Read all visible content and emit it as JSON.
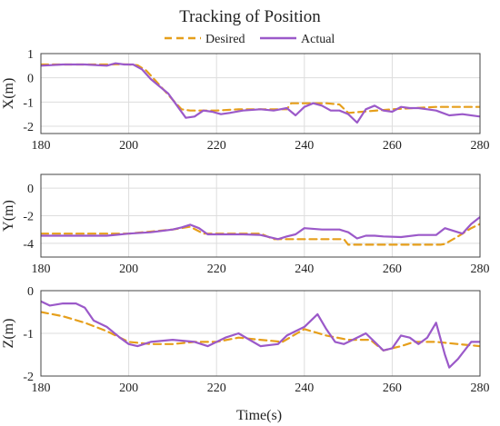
{
  "chart_data": {
    "type": "line",
    "title": "Tracking of Position",
    "xlabel": "Time(s)",
    "legend": {
      "placement": "top-center",
      "entries": [
        {
          "name": "Desired",
          "color": "#E69F1B",
          "style": "dashed"
        },
        {
          "name": "Actual",
          "color": "#9B59C9",
          "style": "solid"
        }
      ]
    },
    "grid": true,
    "subplots": [
      {
        "ylabel": "X(m)",
        "xlim": [
          180,
          280
        ],
        "ylim": [
          -2.3,
          1
        ],
        "xticks": [
          "180",
          "200",
          "220",
          "240",
          "260",
          "280"
        ],
        "yticks": [
          "1",
          "0",
          "-1",
          "-2"
        ],
        "ytick_values": [
          1,
          0,
          -1,
          -2
        ],
        "series": [
          {
            "name": "Desired",
            "x": [
              180,
              185,
              190,
              195,
              198,
              200,
              202,
              204,
              206,
              208,
              210,
              212,
              214,
              216,
              220,
              225,
              230,
              236,
              237,
              240,
              245,
              248,
              250,
              260,
              270,
              280
            ],
            "y": [
              0.55,
              0.55,
              0.55,
              0.55,
              0.56,
              0.55,
              0.52,
              0.3,
              -0.1,
              -0.5,
              -0.9,
              -1.3,
              -1.35,
              -1.35,
              -1.35,
              -1.3,
              -1.3,
              -1.3,
              -1.05,
              -1.05,
              -1.05,
              -1.1,
              -1.45,
              -1.3,
              -1.2,
              -1.2
            ]
          },
          {
            "name": "Actual",
            "x": [
              180,
              185,
              190,
              195,
              197,
              199,
              201,
              203,
              205,
              207,
              209,
              211,
              213,
              215,
              217,
              219,
              221,
              223,
              226,
              230,
              233,
              236,
              238,
              240,
              242,
              244,
              246,
              248,
              250,
              252,
              254,
              256,
              258,
              260,
              262,
              264,
              266,
              268,
              270,
              273,
              276,
              280
            ],
            "y": [
              0.5,
              0.55,
              0.55,
              0.5,
              0.6,
              0.55,
              0.55,
              0.35,
              -0.05,
              -0.35,
              -0.65,
              -1.15,
              -1.65,
              -1.6,
              -1.35,
              -1.4,
              -1.5,
              -1.45,
              -1.35,
              -1.3,
              -1.35,
              -1.25,
              -1.55,
              -1.2,
              -1.05,
              -1.15,
              -1.35,
              -1.35,
              -1.5,
              -1.85,
              -1.3,
              -1.15,
              -1.35,
              -1.4,
              -1.2,
              -1.25,
              -1.25,
              -1.3,
              -1.35,
              -1.55,
              -1.5,
              -1.6
            ]
          }
        ]
      },
      {
        "ylabel": "Y(m)",
        "xlim": [
          180,
          280
        ],
        "ylim": [
          -5,
          1
        ],
        "xticks": [
          "180",
          "200",
          "220",
          "240",
          "260",
          "280"
        ],
        "yticks": [
          "0",
          "-2",
          "-4"
        ],
        "ytick_values": [
          0,
          -2,
          -4
        ],
        "series": [
          {
            "name": "Desired",
            "x": [
              180,
              190,
              200,
              210,
              214,
              217,
              220,
              230,
              233,
              240,
              245,
              249,
              250,
              260,
              265,
              271,
              272,
              275,
              278,
              280
            ],
            "y": [
              -3.3,
              -3.3,
              -3.3,
              -3.0,
              -2.8,
              -3.3,
              -3.3,
              -3.3,
              -3.7,
              -3.7,
              -3.7,
              -3.7,
              -4.1,
              -4.1,
              -4.1,
              -4.1,
              -4.05,
              -3.5,
              -2.9,
              -2.6
            ]
          },
          {
            "name": "Actual",
            "x": [
              180,
              185,
              190,
              195,
              200,
              205,
              210,
              212,
              214,
              216,
              218,
              222,
              226,
              230,
              234,
              236,
              238,
              240,
              244,
              248,
              250,
              252,
              254,
              256,
              258,
              262,
              266,
              270,
              272,
              274,
              276,
              278,
              280
            ],
            "y": [
              -3.45,
              -3.45,
              -3.45,
              -3.45,
              -3.3,
              -3.2,
              -3.0,
              -2.85,
              -2.65,
              -2.9,
              -3.35,
              -3.35,
              -3.35,
              -3.4,
              -3.7,
              -3.5,
              -3.35,
              -2.9,
              -3.0,
              -3.0,
              -3.2,
              -3.65,
              -3.45,
              -3.45,
              -3.5,
              -3.55,
              -3.4,
              -3.4,
              -2.9,
              -3.1,
              -3.3,
              -2.6,
              -2.1
            ]
          }
        ]
      },
      {
        "ylabel": "Z(m)",
        "xlim": [
          180,
          280
        ],
        "ylim": [
          -2,
          0
        ],
        "xticks": [
          "180",
          "200",
          "220",
          "240",
          "260",
          "280"
        ],
        "yticks": [
          "0",
          "-1",
          "-2"
        ],
        "ytick_values": [
          0,
          -1,
          -2
        ],
        "series": [
          {
            "name": "Desired",
            "x": [
              180,
              185,
              190,
              195,
              200,
              205,
              210,
              215,
              220,
              225,
              230,
              235,
              240,
              245,
              250,
              255,
              258,
              262,
              265,
              270,
              275,
              280
            ],
            "y": [
              -0.5,
              -0.6,
              -0.75,
              -0.95,
              -1.2,
              -1.25,
              -1.25,
              -1.2,
              -1.2,
              -1.1,
              -1.15,
              -1.2,
              -0.9,
              -1.05,
              -1.15,
              -1.15,
              -1.4,
              -1.3,
              -1.2,
              -1.2,
              -1.25,
              -1.3
            ]
          },
          {
            "name": "Actual",
            "x": [
              180,
              182,
              185,
              188,
              190,
              192,
              195,
              198,
              200,
              202,
              205,
              210,
              215,
              218,
              222,
              225,
              230,
              234,
              236,
              238,
              240,
              243,
              245,
              247,
              249,
              252,
              254,
              256,
              258,
              260,
              262,
              264,
              266,
              268,
              270,
              272,
              273,
              275,
              278,
              280
            ],
            "y": [
              -0.25,
              -0.35,
              -0.3,
              -0.3,
              -0.4,
              -0.7,
              -0.85,
              -1.1,
              -1.25,
              -1.3,
              -1.2,
              -1.15,
              -1.2,
              -1.3,
              -1.1,
              -1.0,
              -1.3,
              -1.25,
              -1.05,
              -0.95,
              -0.85,
              -0.55,
              -0.9,
              -1.2,
              -1.25,
              -1.1,
              -1.0,
              -1.2,
              -1.4,
              -1.35,
              -1.05,
              -1.1,
              -1.25,
              -1.1,
              -0.75,
              -1.5,
              -1.8,
              -1.6,
              -1.2,
              -1.2
            ]
          }
        ]
      }
    ]
  }
}
